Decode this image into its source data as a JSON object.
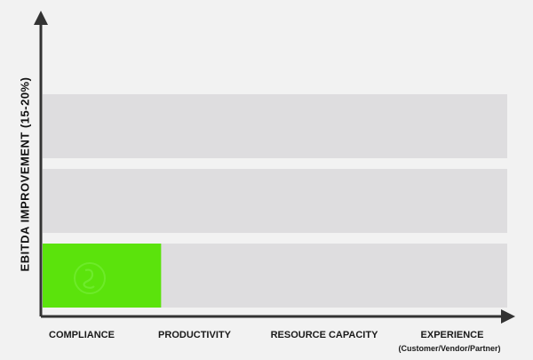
{
  "chart_data": {
    "type": "bar",
    "title": "",
    "ylabel": "EBITDA IMPROVEMENT (15-20%)",
    "xlabel": "",
    "categories": [
      "COMPLIANCE",
      "PRODUCTIVITY",
      "RESOURCE CAPACITY",
      "EXPERIENCE"
    ],
    "category_sublabels": [
      "",
      "",
      "",
      "(Customer/Vendor/Partner)"
    ],
    "levels": 3,
    "values": [
      1,
      0,
      0,
      0
    ],
    "grid": false,
    "legend": "none",
    "colors": {
      "bar_fill": "#5be30c",
      "band_fill": "#dedddf",
      "axis": "#333333",
      "background": "#f2f2f2"
    }
  }
}
